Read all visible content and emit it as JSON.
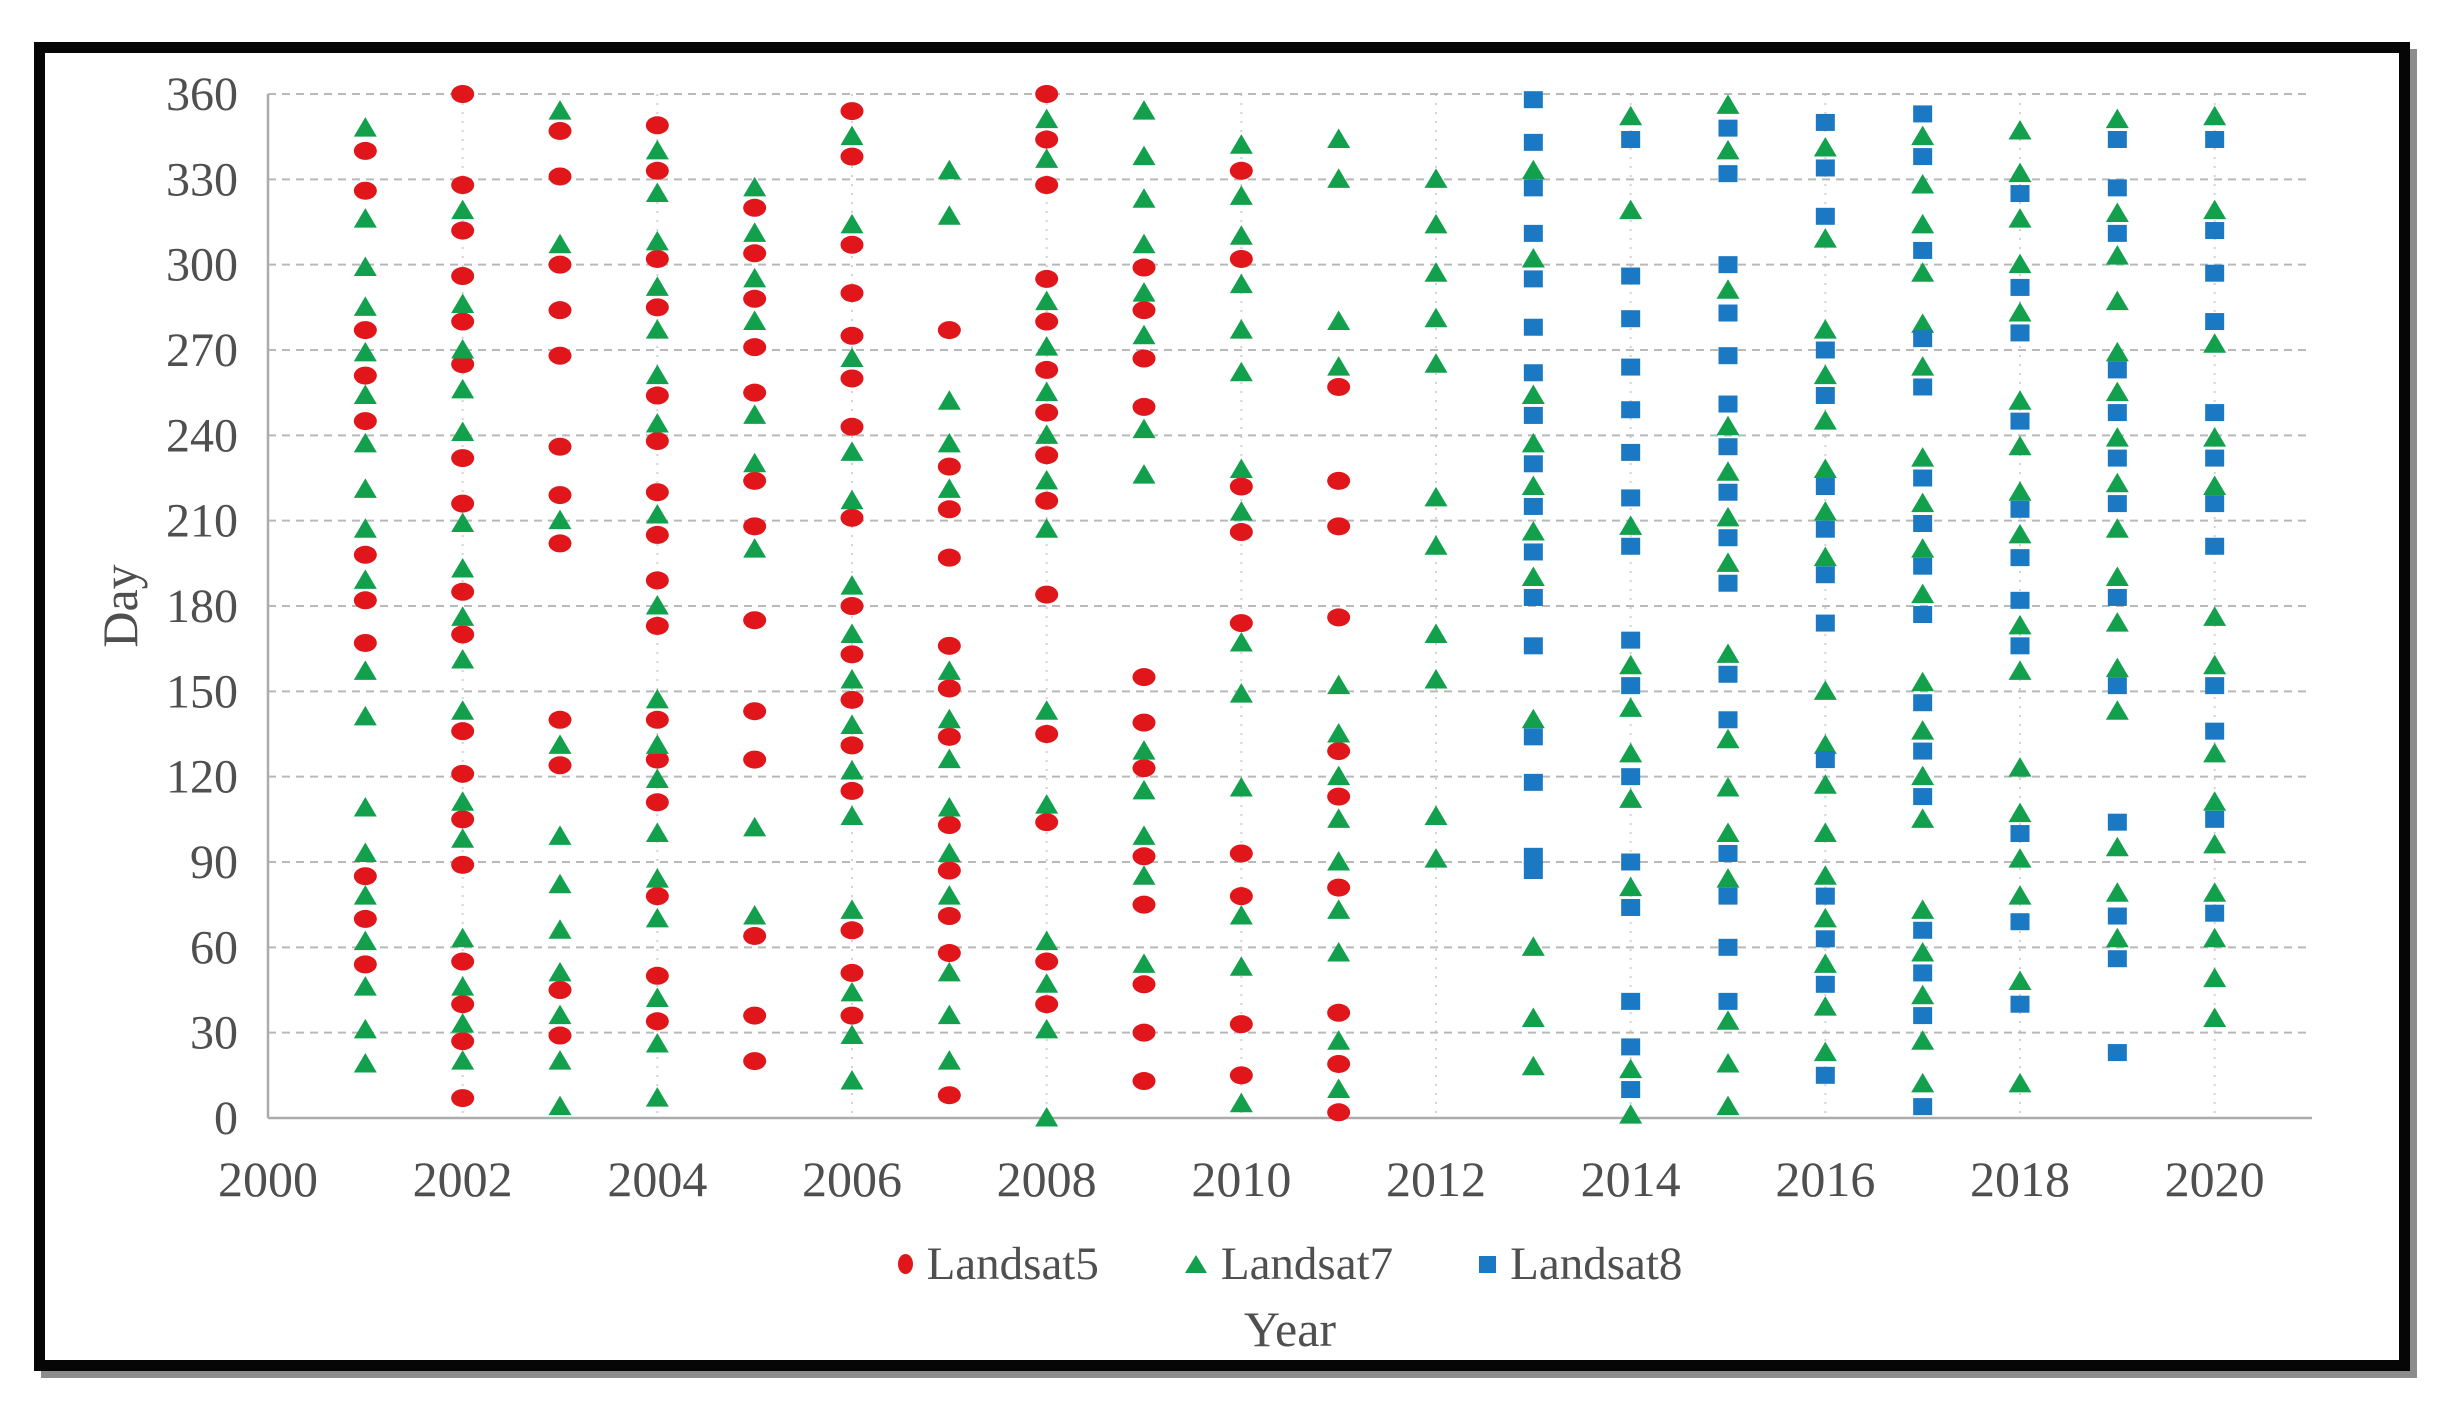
{
  "figure": {
    "xlabel": "Year",
    "ylabel": "Day"
  },
  "colors": {
    "landsat5": "#e0161a",
    "landsat7": "#13a04d",
    "landsat8": "#1b78c3",
    "text": "#4f4f4f",
    "grid": "#b9b9b9"
  },
  "chart_data": {
    "type": "scatter",
    "title": "",
    "xlabel": "Year",
    "ylabel": "Day",
    "xlim": [
      2000,
      2021
    ],
    "ylim": [
      0,
      360
    ],
    "x_ticks": [
      2000,
      2002,
      2004,
      2006,
      2008,
      2010,
      2012,
      2014,
      2016,
      2018,
      2020
    ],
    "y_ticks": [
      0,
      30,
      60,
      90,
      120,
      150,
      180,
      210,
      240,
      270,
      300,
      330,
      360
    ],
    "grid": "horizontal-dashed, vertical-dotted-even-years",
    "legend_position": "bottom",
    "series": [
      {
        "name": "Landsat5",
        "marker": "circle",
        "color": "#e0161a",
        "data": {
          "2001": [
            340,
            326,
            277,
            261,
            245,
            198,
            182,
            167,
            85,
            70,
            54
          ],
          "2002": [
            360,
            328,
            312,
            296,
            280,
            265,
            232,
            216,
            185,
            170,
            136,
            121,
            105,
            89,
            55,
            40,
            27,
            7
          ],
          "2003": [
            347,
            331,
            300,
            284,
            268,
            236,
            219,
            202,
            140,
            124,
            45,
            29
          ],
          "2004": [
            349,
            333,
            302,
            285,
            254,
            238,
            220,
            205,
            189,
            173,
            140,
            126,
            111,
            78,
            50,
            34
          ],
          "2005": [
            320,
            304,
            288,
            271,
            255,
            224,
            208,
            175,
            143,
            126,
            64,
            36,
            20
          ],
          "2006": [
            354,
            338,
            307,
            290,
            275,
            260,
            243,
            211,
            180,
            163,
            147,
            131,
            115,
            66,
            51,
            36
          ],
          "2007": [
            277,
            229,
            214,
            197,
            166,
            151,
            134,
            103,
            87,
            71,
            58,
            8
          ],
          "2008": [
            360,
            344,
            328,
            295,
            280,
            263,
            248,
            233,
            217,
            184,
            135,
            104,
            55,
            40
          ],
          "2009": [
            299,
            284,
            267,
            250,
            155,
            139,
            123,
            92,
            75,
            47,
            30,
            13
          ],
          "2010": [
            333,
            302,
            222,
            206,
            174,
            93,
            78,
            33,
            15
          ],
          "2011": [
            257,
            224,
            208,
            176,
            129,
            113,
            81,
            37,
            19,
            2
          ]
        }
      },
      {
        "name": "Landsat7",
        "marker": "triangle",
        "color": "#13a04d",
        "data": {
          "2001": [
            348,
            316,
            299,
            285,
            269,
            254,
            237,
            221,
            207,
            189,
            157,
            141,
            109,
            93,
            78,
            62,
            46,
            31,
            19
          ],
          "2002": [
            319,
            286,
            270,
            256,
            241,
            209,
            193,
            176,
            161,
            143,
            111,
            98,
            63,
            46,
            33,
            20
          ],
          "2003": [
            354,
            307,
            210,
            131,
            99,
            82,
            66,
            51,
            36,
            20,
            4
          ],
          "2004": [
            340,
            325,
            308,
            292,
            277,
            261,
            244,
            212,
            180,
            147,
            131,
            119,
            100,
            84,
            70,
            42,
            26,
            7
          ],
          "2005": [
            327,
            311,
            295,
            280,
            247,
            230,
            200,
            102,
            71
          ],
          "2006": [
            345,
            314,
            267,
            234,
            217,
            187,
            170,
            154,
            138,
            122,
            106,
            73,
            44,
            29,
            13
          ],
          "2007": [
            333,
            317,
            252,
            237,
            221,
            157,
            140,
            126,
            109,
            93,
            78,
            51,
            36,
            20
          ],
          "2008": [
            351,
            337,
            287,
            271,
            255,
            240,
            224,
            207,
            143,
            110,
            62,
            47,
            31,
            0
          ],
          "2009": [
            354,
            338,
            323,
            307,
            290,
            275,
            242,
            226,
            129,
            115,
            99,
            85,
            54
          ],
          "2010": [
            342,
            324,
            310,
            293,
            277,
            262,
            228,
            213,
            167,
            149,
            116,
            71,
            53,
            5
          ],
          "2011": [
            344,
            330,
            280,
            264,
            152,
            135,
            120,
            105,
            90,
            73,
            58,
            27,
            10
          ],
          "2012": [
            330,
            314,
            297,
            281,
            265,
            218,
            201,
            170,
            154,
            106,
            91
          ],
          "2013": [
            333,
            302,
            254,
            237,
            222,
            206,
            190,
            140,
            60,
            35,
            18
          ],
          "2014": [
            352,
            319,
            208,
            159,
            144,
            128,
            112,
            81,
            17,
            1
          ],
          "2015": [
            356,
            340,
            291,
            243,
            227,
            211,
            195,
            163,
            133,
            116,
            100,
            84,
            34,
            19,
            4
          ],
          "2016": [
            341,
            309,
            277,
            261,
            245,
            228,
            213,
            197,
            150,
            131,
            117,
            100,
            85,
            70,
            54,
            39,
            23
          ],
          "2017": [
            345,
            328,
            314,
            297,
            279,
            264,
            232,
            216,
            200,
            184,
            153,
            136,
            120,
            105,
            73,
            58,
            43,
            27,
            12
          ],
          "2018": [
            347,
            332,
            316,
            300,
            283,
            252,
            236,
            220,
            205,
            173,
            157,
            123,
            107,
            91,
            78,
            48,
            12
          ],
          "2019": [
            351,
            318,
            303,
            287,
            269,
            255,
            239,
            223,
            207,
            190,
            174,
            158,
            143,
            95,
            79,
            63
          ],
          "2020": [
            352,
            319,
            272,
            239,
            222,
            176,
            159,
            128,
            111,
            96,
            79,
            63,
            49,
            35
          ]
        }
      },
      {
        "name": "Landsat8",
        "marker": "square",
        "color": "#1b78c3",
        "data": {
          "2013": [
            358,
            343,
            327,
            311,
            295,
            278,
            262,
            247,
            230,
            215,
            199,
            183,
            166,
            134,
            118,
            92,
            87
          ],
          "2014": [
            344,
            296,
            281,
            264,
            249,
            234,
            218,
            201,
            168,
            152,
            120,
            90,
            74,
            41,
            25,
            10
          ],
          "2015": [
            348,
            332,
            300,
            283,
            268,
            251,
            236,
            220,
            204,
            188,
            156,
            140,
            93,
            78,
            60,
            41
          ],
          "2016": [
            350,
            334,
            317,
            270,
            254,
            222,
            207,
            191,
            174,
            126,
            78,
            63,
            47,
            15
          ],
          "2017": [
            353,
            338,
            305,
            274,
            257,
            225,
            209,
            194,
            177,
            146,
            129,
            113,
            66,
            51,
            36,
            4
          ],
          "2018": [
            325,
            292,
            276,
            245,
            214,
            197,
            182,
            166,
            100,
            69,
            40
          ],
          "2019": [
            344,
            327,
            311,
            263,
            248,
            232,
            216,
            183,
            152,
            104,
            71,
            56,
            23
          ],
          "2020": [
            344,
            312,
            297,
            280,
            248,
            232,
            216,
            201,
            152,
            136,
            105,
            72
          ]
        }
      }
    ]
  }
}
